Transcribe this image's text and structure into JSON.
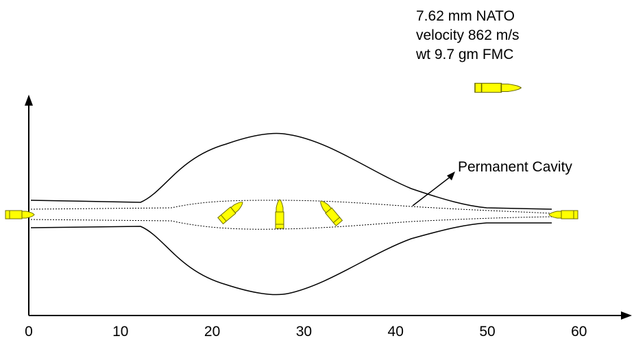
{
  "caption": {
    "lines": [
      "7.62 mm NATO",
      "velocity 862 m/s",
      "wt 9.7 gm FMC"
    ]
  },
  "annotation": "Permanent Cavity",
  "x_axis": {
    "ticks": [
      0,
      10,
      20,
      30,
      40,
      50,
      60
    ]
  }
}
